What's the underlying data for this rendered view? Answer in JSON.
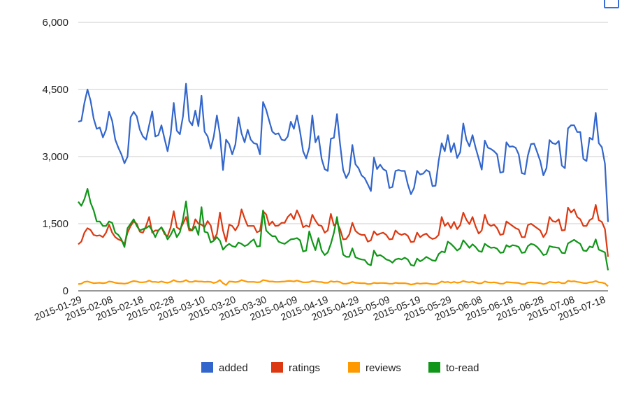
{
  "chart_data": {
    "type": "line",
    "title": "",
    "xlabel": "",
    "ylabel": "",
    "ylim": [
      0,
      6000
    ],
    "y_ticks": [
      0,
      1500,
      3000,
      4500,
      6000
    ],
    "y_tick_labels": [
      "0",
      "1,500",
      "3,000",
      "4,500",
      "6,000"
    ],
    "x_start": "2015-01-29",
    "x_end": "2015-07-19",
    "x_tick_labels": [
      "2015-01-29",
      "2015-02-08",
      "2015-02-18",
      "2015-02-28",
      "2015-03-10",
      "2015-03-20",
      "2015-03-30",
      "2015-04-09",
      "2015-04-19",
      "2015-04-29",
      "2015-05-09",
      "2015-05-19",
      "2015-05-29",
      "2015-06-08",
      "2015-06-18",
      "2015-06-28",
      "2015-07-08",
      "2015-07-18"
    ],
    "grid": true,
    "legend": "bottom",
    "series": [
      {
        "name": "added",
        "color": "#3366cc",
        "values": [
          3780,
          3800,
          4200,
          4500,
          4250,
          3850,
          3620,
          3650,
          3430,
          3600,
          4000,
          3800,
          3380,
          3200,
          3050,
          2850,
          3000,
          3880,
          4000,
          3900,
          3600,
          3450,
          3380,
          3700,
          4010,
          3450,
          3480,
          3700,
          3400,
          3120,
          3500,
          4200,
          3580,
          3500,
          3900,
          4630,
          3800,
          3700,
          4030,
          3680,
          4360,
          3560,
          3450,
          3180,
          3450,
          3920,
          3500,
          2700,
          3380,
          3280,
          3050,
          3270,
          3880,
          3520,
          3320,
          3600,
          3380,
          3300,
          3280,
          3050,
          4220,
          4050,
          3800,
          3560,
          3500,
          3520,
          3380,
          3360,
          3450,
          3780,
          3620,
          3920,
          3560,
          3120,
          2960,
          3200,
          3920,
          3320,
          3460,
          2950,
          2720,
          2680,
          3400,
          3420,
          3950,
          3280,
          2700,
          2520,
          2650,
          3260,
          2830,
          2740,
          2580,
          2520,
          2380,
          2230,
          2980,
          2720,
          2820,
          2720,
          2680,
          2300,
          2320,
          2680,
          2700,
          2680,
          2680,
          2380,
          2160,
          2300,
          2680,
          2600,
          2620,
          2700,
          2660,
          2340,
          2350,
          2900,
          3300,
          3120,
          3480,
          3100,
          3300,
          2970,
          3100,
          3740,
          3380,
          3230,
          3480,
          3200,
          2960,
          2710,
          3360,
          3200,
          3170,
          3120,
          3050,
          2640,
          2660,
          3320,
          3220,
          3230,
          3200,
          3050,
          2630,
          2610,
          3030,
          3280,
          3290,
          3100,
          2900,
          2580,
          2740,
          3370,
          3300,
          3280,
          3350,
          2800,
          2740,
          3630,
          3700,
          3700,
          3550,
          3550,
          2950,
          2900,
          3420,
          3380,
          3980,
          3300,
          3210,
          2840,
          1540
        ]
      },
      {
        "name": "ratings",
        "color": "#dc3912",
        "values": [
          1040,
          1100,
          1300,
          1400,
          1360,
          1250,
          1230,
          1240,
          1200,
          1300,
          1480,
          1300,
          1200,
          1150,
          1120,
          1050,
          1300,
          1450,
          1550,
          1500,
          1320,
          1300,
          1450,
          1650,
          1300,
          1350,
          1350,
          1420,
          1270,
          1220,
          1420,
          1780,
          1420,
          1370,
          1500,
          1650,
          1350,
          1350,
          1600,
          1500,
          1480,
          1420,
          1560,
          1460,
          1150,
          1270,
          1750,
          1350,
          1100,
          1480,
          1450,
          1350,
          1470,
          1820,
          1620,
          1450,
          1450,
          1450,
          1310,
          1340,
          1780,
          1710,
          1470,
          1550,
          1450,
          1460,
          1520,
          1520,
          1650,
          1720,
          1600,
          1800,
          1650,
          1420,
          1460,
          1430,
          1700,
          1570,
          1470,
          1450,
          1300,
          1350,
          1720,
          1460,
          1520,
          1380,
          1150,
          1160,
          1260,
          1520,
          1340,
          1280,
          1250,
          1250,
          1100,
          1130,
          1330,
          1250,
          1280,
          1300,
          1250,
          1150,
          1160,
          1350,
          1280,
          1250,
          1280,
          1230,
          1090,
          1100,
          1300,
          1200,
          1250,
          1280,
          1200,
          1160,
          1180,
          1250,
          1650,
          1450,
          1520,
          1400,
          1540,
          1380,
          1470,
          1750,
          1590,
          1490,
          1650,
          1440,
          1280,
          1350,
          1700,
          1500,
          1450,
          1480,
          1400,
          1250,
          1270,
          1550,
          1500,
          1450,
          1400,
          1370,
          1200,
          1200,
          1470,
          1500,
          1450,
          1400,
          1350,
          1200,
          1300,
          1650,
          1560,
          1540,
          1600,
          1350,
          1360,
          1860,
          1750,
          1820,
          1650,
          1600,
          1450,
          1450,
          1580,
          1620,
          1920,
          1580,
          1540,
          1380,
          760
        ]
      },
      {
        "name": "reviews",
        "color": "#ff9900",
        "values": [
          150,
          160,
          200,
          210,
          190,
          170,
          175,
          180,
          170,
          180,
          210,
          200,
          180,
          170,
          165,
          160,
          170,
          200,
          220,
          210,
          190,
          190,
          200,
          230,
          200,
          200,
          190,
          210,
          190,
          180,
          200,
          240,
          210,
          200,
          210,
          240,
          200,
          200,
          220,
          210,
          210,
          200,
          205,
          200,
          175,
          195,
          240,
          170,
          130,
          210,
          205,
          195,
          205,
          240,
          220,
          200,
          200,
          200,
          190,
          195,
          240,
          230,
          210,
          210,
          200,
          200,
          205,
          210,
          220,
          220,
          210,
          230,
          210,
          190,
          190,
          195,
          220,
          210,
          200,
          195,
          180,
          180,
          215,
          200,
          210,
          195,
          160,
          160,
          175,
          200,
          180,
          175,
          170,
          170,
          150,
          155,
          180,
          170,
          175,
          175,
          170,
          160,
          160,
          180,
          170,
          170,
          170,
          160,
          140,
          150,
          170,
          160,
          165,
          170,
          160,
          150,
          150,
          170,
          210,
          190,
          200,
          180,
          200,
          180,
          190,
          220,
          200,
          190,
          205,
          185,
          165,
          170,
          210,
          190,
          185,
          190,
          180,
          160,
          160,
          195,
          190,
          185,
          180,
          175,
          150,
          150,
          185,
          190,
          185,
          180,
          170,
          150,
          165,
          200,
          190,
          185,
          195,
          170,
          170,
          225,
          210,
          215,
          200,
          190,
          175,
          170,
          190,
          195,
          220,
          190,
          185,
          165,
          100
        ]
      },
      {
        "name": "to-read",
        "color": "#109618",
        "values": [
          1990,
          1900,
          2050,
          2280,
          1970,
          1800,
          1550,
          1550,
          1450,
          1450,
          1550,
          1520,
          1300,
          1250,
          1150,
          980,
          1400,
          1500,
          1600,
          1450,
          1350,
          1380,
          1400,
          1450,
          1350,
          1200,
          1350,
          1420,
          1310,
          1150,
          1250,
          1390,
          1200,
          1310,
          1600,
          2000,
          1400,
          1350,
          1440,
          1250,
          1870,
          1320,
          1300,
          1080,
          1120,
          1200,
          1120,
          920,
          1000,
          1050,
          1000,
          980,
          1080,
          1050,
          1000,
          1030,
          1100,
          1150,
          990,
          1000,
          1800,
          1350,
          1280,
          1220,
          1220,
          1100,
          1070,
          1050,
          1100,
          1150,
          1160,
          1180,
          1130,
          880,
          900,
          1330,
          1100,
          910,
          1180,
          900,
          800,
          860,
          1050,
          1300,
          1650,
          1200,
          810,
          760,
          760,
          950,
          750,
          720,
          700,
          690,
          600,
          570,
          900,
          780,
          800,
          760,
          700,
          680,
          630,
          700,
          720,
          700,
          740,
          700,
          580,
          560,
          720,
          660,
          700,
          760,
          720,
          680,
          670,
          820,
          880,
          860,
          1100,
          1050,
          980,
          900,
          950,
          1130,
          1050,
          960,
          1040,
          980,
          890,
          870,
          1050,
          1000,
          960,
          970,
          940,
          850,
          860,
          1020,
          980,
          1020,
          1010,
          980,
          850,
          860,
          1000,
          1050,
          1030,
          980,
          900,
          800,
          820,
          1000,
          980,
          970,
          960,
          850,
          840,
          1060,
          1100,
          1140,
          1090,
          1050,
          900,
          890,
          990,
          970,
          1150,
          920,
          890,
          860,
          460
        ]
      }
    ]
  }
}
